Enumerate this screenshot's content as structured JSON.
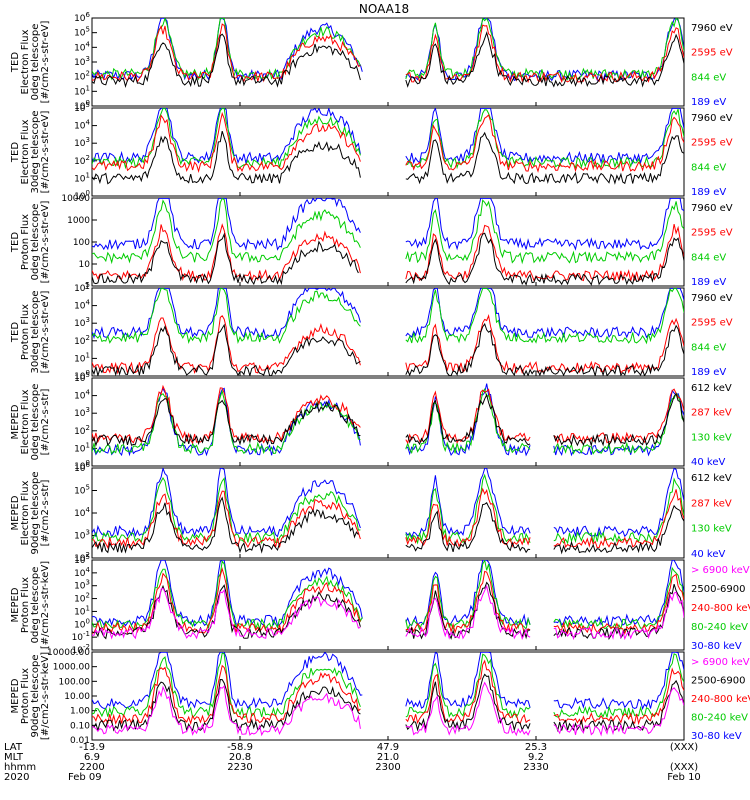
{
  "chart_data": {
    "type": "line",
    "title": "NOAA18",
    "xaxis": {
      "row_labels": [
        "LAT",
        "MLT",
        "hhmm",
        "2020"
      ],
      "ticks": [
        {
          "values": [
            "-13.9",
            "6.9",
            "2200",
            "Feb 09"
          ]
        },
        {
          "values": [
            "-58.9",
            "20.8",
            "2230",
            ""
          ]
        },
        {
          "values": [
            "47.9",
            "21.0",
            "2300",
            ""
          ]
        },
        {
          "values": [
            "25.3",
            "9.2",
            "2330",
            ""
          ]
        },
        {
          "values": [
            "(XXX)",
            "",
            "(XXX)",
            "Feb 10"
          ]
        }
      ]
    },
    "panels": [
      {
        "ylabel": [
          "TED",
          "Electron Flux",
          "0deg telescope",
          "[#/cm2-s-str-eV]"
        ],
        "yscale": "log",
        "ylim": [
          1,
          1000000
        ],
        "yticks": [
          "10^0",
          "10^1",
          "10^2",
          "10^3",
          "10^4",
          "10^5",
          "10^6"
        ],
        "series": [
          {
            "name": "7960 eV",
            "color": "#000000",
            "level": 50
          },
          {
            "name": "2595 eV",
            "color": "#ff0000",
            "level": 100
          },
          {
            "name": "844 eV",
            "color": "#00cc00",
            "level": 150
          },
          {
            "name": "189 eV",
            "color": "#0000ff",
            "level": 120
          }
        ]
      },
      {
        "ylabel": [
          "TED",
          "Electron Flux",
          "30deg telescope",
          "[#/cm2-s-str-eV]"
        ],
        "yscale": "log",
        "ylim": [
          1,
          100000
        ],
        "yticks": [
          "10^0",
          "10^1",
          "10^2",
          "10^3",
          "10^4",
          "10^5"
        ],
        "series": [
          {
            "name": "7960 eV",
            "color": "#000000",
            "level": 10
          },
          {
            "name": "2595 eV",
            "color": "#ff0000",
            "level": 50
          },
          {
            "name": "844 eV",
            "color": "#00cc00",
            "level": 80
          },
          {
            "name": "189 eV",
            "color": "#0000ff",
            "level": 150
          }
        ]
      },
      {
        "ylabel": [
          "TED",
          "Proton Flux",
          "0deg telescope",
          "[#/cm2-s-str-eV]"
        ],
        "yscale": "log",
        "ylim": [
          1,
          10000
        ],
        "yticks": [
          "1",
          "10",
          "100",
          "1000",
          "10000"
        ],
        "series": [
          {
            "name": "7960 eV",
            "color": "#000000",
            "level": 2
          },
          {
            "name": "2595 eV",
            "color": "#ff0000",
            "level": 3
          },
          {
            "name": "844 eV",
            "color": "#00cc00",
            "level": 20
          },
          {
            "name": "189 eV",
            "color": "#0000ff",
            "level": 80
          }
        ]
      },
      {
        "ylabel": [
          "TED",
          "Proton Flux",
          "30deg telescope",
          "[#/cm2-s-str-eV]"
        ],
        "yscale": "log",
        "ylim": [
          1,
          100000
        ],
        "yticks": [
          "10^0",
          "10^1",
          "10^2",
          "10^3",
          "10^4",
          "10^5"
        ],
        "series": [
          {
            "name": "7960 eV",
            "color": "#000000",
            "level": 2
          },
          {
            "name": "2595 eV",
            "color": "#ff0000",
            "level": 3
          },
          {
            "name": "844 eV",
            "color": "#00cc00",
            "level": 150
          },
          {
            "name": "189 eV",
            "color": "#0000ff",
            "level": 300
          }
        ]
      },
      {
        "ylabel": [
          "MEPED",
          "Electron Flux",
          "0deg telescope",
          "[#/cm2-s-str]"
        ],
        "yscale": "log",
        "ylim": [
          1,
          100000
        ],
        "yticks": [
          "10^0",
          "10^1",
          "10^2",
          "10^3",
          "10^4",
          "10^5"
        ],
        "series": [
          {
            "name": "612 keV",
            "color": "#000000",
            "level": 30
          },
          {
            "name": "287 keV",
            "color": "#ff0000",
            "level": 40
          },
          {
            "name": "130 keV",
            "color": "#00cc00",
            "level": 10
          },
          {
            "name": "40 keV",
            "color": "#0000ff",
            "level": 8
          }
        ]
      },
      {
        "ylabel": [
          "MEPED",
          "Electron Flux",
          "90deg telescope",
          "[#/cm2-s-str]"
        ],
        "yscale": "log",
        "ylim": [
          100,
          1000000
        ],
        "yticks": [
          "10^2",
          "10^3",
          "10^4",
          "10^5",
          "10^6"
        ],
        "series": [
          {
            "name": "612 keV",
            "color": "#000000",
            "level": 300
          },
          {
            "name": "287 keV",
            "color": "#ff0000",
            "level": 500
          },
          {
            "name": "130 keV",
            "color": "#00cc00",
            "level": 800
          },
          {
            "name": "40 keV",
            "color": "#0000ff",
            "level": 1500
          }
        ]
      },
      {
        "ylabel": [
          "MEPED",
          "Proton Flux",
          "0deg telescope",
          "[#/cm2-s-str-keV]"
        ],
        "yscale": "log",
        "ylim": [
          0.01,
          100000
        ],
        "yticks": [
          "10^-2",
          "10^-1",
          "10^0",
          "10^1",
          "10^2",
          "10^3",
          "10^4",
          "10^5"
        ],
        "series": [
          {
            "name": "> 6900 keV",
            "color": "#ff00ff",
            "level": 0.2
          },
          {
            "name": "2500-6900",
            "color": "#000000",
            "level": 0.2
          },
          {
            "name": "240-800 keV",
            "color": "#ff0000",
            "level": 0.5
          },
          {
            "name": "80-240 keV",
            "color": "#00cc00",
            "level": 1
          },
          {
            "name": "30-80 keV",
            "color": "#0000ff",
            "level": 2
          }
        ]
      },
      {
        "ylabel": [
          "MEPED",
          "Proton Flux",
          "90deg telescope",
          "[#/cm2-s-str-keV]"
        ],
        "yscale": "log",
        "ylim": [
          0.01,
          10000
        ],
        "yticks": [
          "0.01",
          "0.10",
          "1.00",
          "10.00",
          "100.00",
          "1000.00",
          "10000.00"
        ],
        "series": [
          {
            "name": "> 6900 keV",
            "color": "#ff00ff",
            "level": 0.05
          },
          {
            "name": "2500-6900",
            "color": "#000000",
            "level": 0.1
          },
          {
            "name": "240-800 keV",
            "color": "#ff0000",
            "level": 0.3
          },
          {
            "name": "80-240 keV",
            "color": "#00cc00",
            "level": 0.8
          },
          {
            "name": "30-80 keV",
            "color": "#0000ff",
            "level": 3
          }
        ]
      }
    ]
  }
}
